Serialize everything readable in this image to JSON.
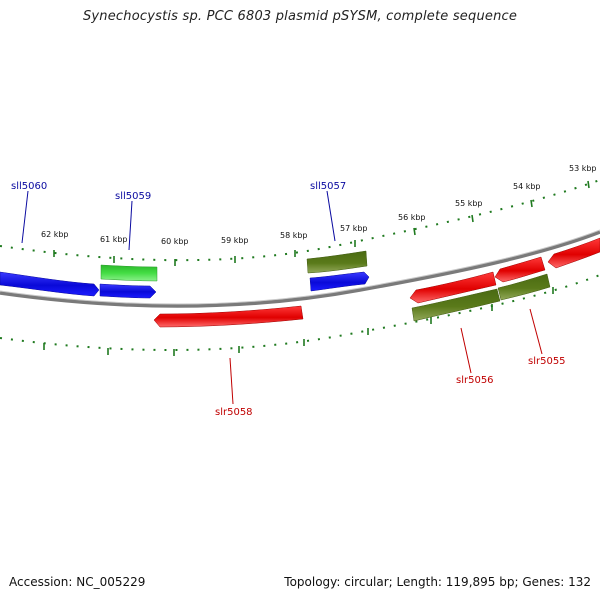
{
  "title": "Synechocystis sp. PCC 6803 plasmid pSYSM, complete sequence",
  "footer": {
    "accession": "Accession: NC_005229",
    "summary": "Topology: circular; Length: 119,895 bp; Genes: 132"
  },
  "colors": {
    "forward_strand": "#0a0ad8",
    "reverse_strand": "#e00000",
    "green": "#33cc33",
    "olive": "#5a7a1a",
    "tick": "#1f7a1f",
    "backbone": "#808080",
    "forward_label": "#0a0aa0",
    "reverse_label": "#c00000"
  },
  "kbp_ticks": [
    {
      "label": "53 kbp",
      "kbp": 53
    },
    {
      "label": "54 kbp",
      "kbp": 54
    },
    {
      "label": "55 kbp",
      "kbp": 55
    },
    {
      "label": "56 kbp",
      "kbp": 56
    },
    {
      "label": "57 kbp",
      "kbp": 57
    },
    {
      "label": "58 kbp",
      "kbp": 58
    },
    {
      "label": "59 kbp",
      "kbp": 59
    },
    {
      "label": "60 kbp",
      "kbp": 60
    },
    {
      "label": "61 kbp",
      "kbp": 61
    },
    {
      "label": "62 kbp",
      "kbp": 62
    }
  ],
  "genes": [
    {
      "name": "sll5060",
      "strand": "forward"
    },
    {
      "name": "sll5059",
      "strand": "forward"
    },
    {
      "name": "sll5057",
      "strand": "forward"
    },
    {
      "name": "slr5058",
      "strand": "reverse"
    },
    {
      "name": "slr5056",
      "strand": "reverse"
    },
    {
      "name": "slr5055",
      "strand": "reverse"
    }
  ]
}
